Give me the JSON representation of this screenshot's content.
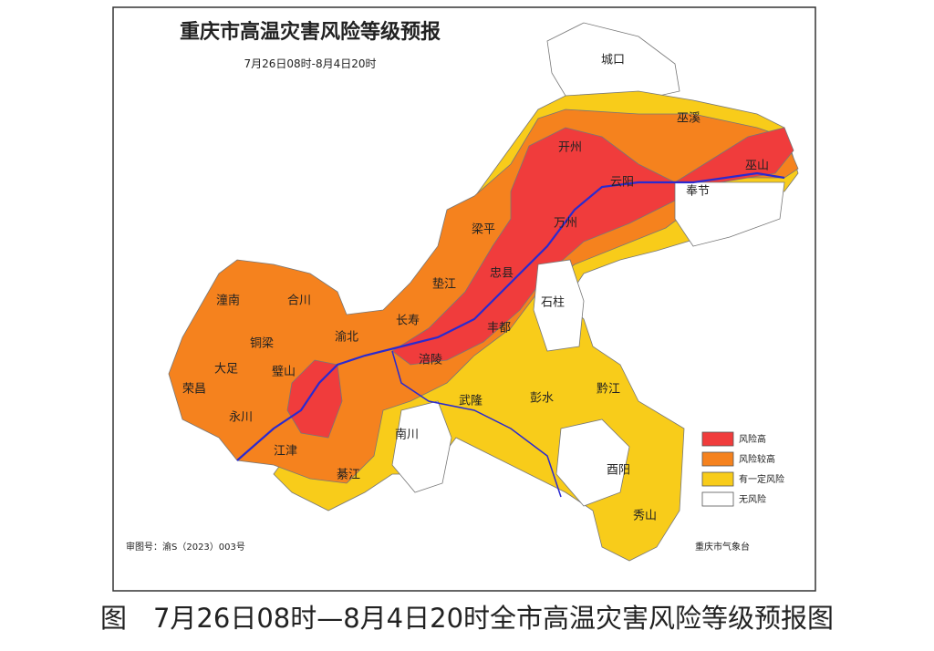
{
  "map": {
    "title": "重庆市高温灾害风险等级预报",
    "subtitle": "7月26日08时-8月4日20时",
    "places": [
      "城口",
      "巫溪",
      "巫山",
      "开州",
      "云阳",
      "奉节",
      "万州",
      "梁平",
      "忠县",
      "垫江",
      "石柱",
      "长寿",
      "丰都",
      "涪陵",
      "潼南",
      "合川",
      "渝北",
      "铜梁",
      "大足",
      "璧山",
      "荣昌",
      "永川",
      "江津",
      "綦江",
      "南川",
      "武隆",
      "彭水",
      "黔江",
      "酉阳",
      "秀山"
    ],
    "legend": [
      {
        "name": "风险高",
        "color": "#f03c3c"
      },
      {
        "name": "风险较高",
        "color": "#f5821e"
      },
      {
        "name": "有一定风险",
        "color": "#f8cc1a"
      },
      {
        "name": "无风险",
        "color": "#ffffff"
      }
    ],
    "map_number": "审图号：渝S（2023）003号",
    "issuer": "重庆市气象台",
    "caption": "图　7月26日08时—8月4日20时全市高温灾害风险等级预报图"
  }
}
